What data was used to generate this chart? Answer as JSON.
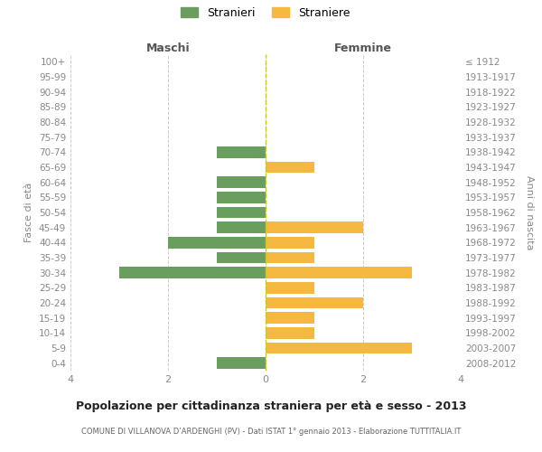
{
  "age_groups": [
    "100+",
    "95-99",
    "90-94",
    "85-89",
    "80-84",
    "75-79",
    "70-74",
    "65-69",
    "60-64",
    "55-59",
    "50-54",
    "45-49",
    "40-44",
    "35-39",
    "30-34",
    "25-29",
    "20-24",
    "15-19",
    "10-14",
    "5-9",
    "0-4"
  ],
  "birth_years": [
    "≤ 1912",
    "1913-1917",
    "1918-1922",
    "1923-1927",
    "1928-1932",
    "1933-1937",
    "1938-1942",
    "1943-1947",
    "1948-1952",
    "1953-1957",
    "1958-1962",
    "1963-1967",
    "1968-1972",
    "1973-1977",
    "1978-1982",
    "1983-1987",
    "1988-1992",
    "1993-1997",
    "1998-2002",
    "2003-2007",
    "2008-2012"
  ],
  "males": [
    0,
    0,
    0,
    0,
    0,
    0,
    1,
    0,
    1,
    1,
    1,
    1,
    2,
    1,
    3,
    0,
    0,
    0,
    0,
    0,
    1
  ],
  "females": [
    0,
    0,
    0,
    0,
    0,
    0,
    0,
    1,
    0,
    0,
    0,
    2,
    1,
    1,
    3,
    1,
    2,
    1,
    1,
    3,
    0
  ],
  "male_color": "#6a9e5e",
  "female_color": "#f5b942",
  "title": "Popolazione per cittadinanza straniera per età e sesso - 2013",
  "subtitle": "COMUNE DI VILLANOVA D’ARDENGHI (PV) - Dati ISTAT 1° gennaio 2013 - Elaborazione TUTTITALIA.IT",
  "xlabel_left": "Maschi",
  "xlabel_right": "Femmine",
  "ylabel_left": "Fasce di età",
  "ylabel_right": "Anni di nascita",
  "legend_male": "Stranieri",
  "legend_female": "Straniere",
  "xlim": 4,
  "background_color": "#ffffff",
  "grid_color": "#cccccc",
  "text_color": "#888888",
  "bar_height": 0.75
}
